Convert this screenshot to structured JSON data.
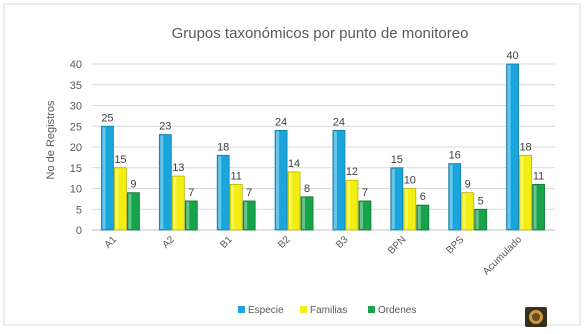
{
  "chart_data": {
    "type": "bar",
    "title": "Grupos taxonómicos por punto de monitoreo",
    "xlabel": "",
    "ylabel": "No de Registros",
    "categories": [
      "A1",
      "A2",
      "B1",
      "B2",
      "B3",
      "BPN",
      "BPS",
      "Acumulado"
    ],
    "ylim": [
      0,
      40
    ],
    "yticks": [
      0,
      5,
      10,
      15,
      20,
      25,
      30,
      35,
      40
    ],
    "grid": true,
    "legend_position": "bottom",
    "series": [
      {
        "name": "Especie",
        "color": "#1aa6dd",
        "values": [
          25,
          23,
          18,
          24,
          24,
          15,
          16,
          40
        ]
      },
      {
        "name": "Familias",
        "color": "#f2ee12",
        "values": [
          15,
          13,
          11,
          14,
          12,
          10,
          9,
          18
        ]
      },
      {
        "name": "Ordenes",
        "color": "#16a34a",
        "values": [
          9,
          7,
          7,
          8,
          7,
          6,
          5,
          11
        ]
      }
    ]
  },
  "logo_icon": "institution-seal-icon"
}
